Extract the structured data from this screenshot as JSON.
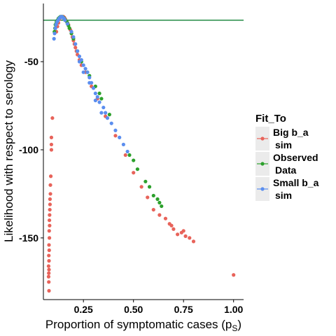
{
  "chart_data": {
    "type": "scatter",
    "title": "",
    "xlabel": "Proportion of symptomatic cases (p",
    "xlabel_sub": "S",
    "xlabel_close": ")",
    "ylabel": "Likelihood with respect to serology",
    "xlim": [
      0.05,
      1.05
    ],
    "ylim": [
      -185,
      -17
    ],
    "xticks": [
      0.25,
      0.5,
      0.75,
      1.0
    ],
    "xtick_labels": [
      "0.25",
      "0.50",
      "0.75",
      "1.00"
    ],
    "yticks": [
      -50,
      -100,
      -150
    ],
    "ytick_labels": [
      "-50",
      "-100",
      "-150"
    ],
    "grid": false,
    "legend_position": "right",
    "hline": {
      "y": -26.5,
      "color": "#238b45"
    },
    "legend": {
      "title": "Fit_To",
      "entries": [
        {
          "line1": "Big b_a",
          "line2": "sim",
          "color": "#E8635A"
        },
        {
          "line1": "Observed",
          "line2": "Data",
          "color": "#2CA02C"
        },
        {
          "line1": "Small b_a",
          "line2": "sim",
          "color": "#5B8EEF"
        }
      ]
    },
    "series": [
      {
        "name": "Big b_a sim",
        "color": "#E8635A",
        "points": [
          [
            0.095,
            -82
          ],
          [
            0.09,
            -93
          ],
          [
            0.09,
            -97
          ],
          [
            0.09,
            -100
          ],
          [
            0.087,
            -115
          ],
          [
            0.085,
            -120
          ],
          [
            0.085,
            -125
          ],
          [
            0.083,
            -128
          ],
          [
            0.083,
            -131
          ],
          [
            0.082,
            -134
          ],
          [
            0.081,
            -137
          ],
          [
            0.08,
            -140
          ],
          [
            0.081,
            -143
          ],
          [
            0.079,
            -146
          ],
          [
            0.08,
            -150
          ],
          [
            0.078,
            -154
          ],
          [
            0.079,
            -157
          ],
          [
            0.077,
            -160
          ],
          [
            0.078,
            -163
          ],
          [
            0.076,
            -166
          ],
          [
            0.078,
            -168
          ],
          [
            0.077,
            -170
          ],
          [
            0.076,
            -172
          ],
          [
            0.077,
            -175
          ],
          [
            0.078,
            -180
          ],
          [
            0.115,
            -33
          ],
          [
            0.12,
            -30
          ],
          [
            0.125,
            -28
          ],
          [
            0.13,
            -26
          ],
          [
            0.135,
            -25
          ],
          [
            0.14,
            -24.5
          ],
          [
            0.145,
            -24.5
          ],
          [
            0.15,
            -24.5
          ],
          [
            0.155,
            -25
          ],
          [
            0.16,
            -26
          ],
          [
            0.165,
            -27
          ],
          [
            0.17,
            -28
          ],
          [
            0.175,
            -29
          ],
          [
            0.18,
            -31
          ],
          [
            0.185,
            -32
          ],
          [
            0.19,
            -34
          ],
          [
            0.195,
            -36
          ],
          [
            0.2,
            -38
          ],
          [
            0.205,
            -40
          ],
          [
            0.21,
            -42
          ],
          [
            0.215,
            -44
          ],
          [
            0.22,
            -46
          ],
          [
            0.23,
            -49
          ],
          [
            0.24,
            -52
          ],
          [
            0.26,
            -56
          ],
          [
            0.29,
            -64
          ],
          [
            0.32,
            -71
          ],
          [
            0.36,
            -81
          ],
          [
            0.41,
            -92
          ],
          [
            0.46,
            -103
          ],
          [
            0.5,
            -113
          ],
          [
            0.54,
            -121
          ],
          [
            0.57,
            -127
          ],
          [
            0.6,
            -134
          ],
          [
            0.63,
            -137
          ],
          [
            0.66,
            -139
          ],
          [
            0.68,
            -142
          ],
          [
            0.7,
            -145
          ],
          [
            0.72,
            -148
          ],
          [
            0.74,
            -147
          ],
          [
            0.76,
            -149
          ],
          [
            0.78,
            -150
          ],
          [
            0.8,
            -152
          ],
          [
            0.75,
            -146
          ],
          [
            0.69,
            -143
          ],
          [
            1.0,
            -171
          ]
        ]
      },
      {
        "name": "Observed Data",
        "color": "#2CA02C",
        "points": [
          [
            0.105,
            -33
          ],
          [
            0.108,
            -31
          ],
          [
            0.11,
            -29
          ],
          [
            0.115,
            -27.5
          ],
          [
            0.12,
            -26.5
          ],
          [
            0.125,
            -25.5
          ],
          [
            0.13,
            -25
          ],
          [
            0.135,
            -24.5
          ],
          [
            0.14,
            -24.5
          ],
          [
            0.145,
            -24.5
          ],
          [
            0.15,
            -25
          ],
          [
            0.155,
            -25.5
          ],
          [
            0.16,
            -26.5
          ],
          [
            0.165,
            -27
          ],
          [
            0.17,
            -28
          ],
          [
            0.175,
            -29.5
          ],
          [
            0.18,
            -31
          ],
          [
            0.19,
            -34
          ],
          [
            0.2,
            -37
          ],
          [
            0.22,
            -44
          ],
          [
            0.24,
            -50
          ],
          [
            0.27,
            -56
          ],
          [
            0.28,
            -58
          ],
          [
            0.31,
            -64
          ],
          [
            0.33,
            -68
          ],
          [
            0.34,
            -71
          ],
          [
            0.38,
            -80
          ],
          [
            0.48,
            -103
          ],
          [
            0.5,
            -106
          ],
          [
            0.52,
            -111
          ],
          [
            0.56,
            -118
          ],
          [
            0.58,
            -121
          ],
          [
            0.6,
            -126
          ],
          [
            0.62,
            -128
          ],
          [
            0.63,
            -130
          ],
          [
            0.64,
            -132
          ]
        ]
      },
      {
        "name": "Small b_a sim",
        "color": "#5B8EEF",
        "points": [
          [
            0.103,
            -37
          ],
          [
            0.106,
            -34
          ],
          [
            0.11,
            -31
          ],
          [
            0.113,
            -29
          ],
          [
            0.118,
            -27.5
          ],
          [
            0.123,
            -26.5
          ],
          [
            0.128,
            -25.5
          ],
          [
            0.133,
            -25
          ],
          [
            0.138,
            -24.5
          ],
          [
            0.143,
            -24.5
          ],
          [
            0.148,
            -25
          ],
          [
            0.153,
            -25.5
          ],
          [
            0.158,
            -26.5
          ],
          [
            0.17,
            -28.5
          ],
          [
            0.19,
            -33
          ],
          [
            0.2,
            -36
          ],
          [
            0.21,
            -40
          ],
          [
            0.22,
            -44
          ],
          [
            0.23,
            -47
          ],
          [
            0.24,
            -49
          ],
          [
            0.25,
            -52
          ],
          [
            0.26,
            -54
          ],
          [
            0.27,
            -56
          ],
          [
            0.28,
            -59
          ],
          [
            0.29,
            -62
          ],
          [
            0.3,
            -65
          ],
          [
            0.31,
            -68
          ],
          [
            0.32,
            -70
          ],
          [
            0.33,
            -73
          ],
          [
            0.35,
            -76
          ],
          [
            0.36,
            -79
          ],
          [
            0.37,
            -82
          ],
          [
            0.39,
            -85
          ],
          [
            0.41,
            -89
          ],
          [
            0.43,
            -93
          ],
          [
            0.45,
            -97
          ],
          [
            0.47,
            -101
          ],
          [
            0.31,
            -72
          ],
          [
            0.28,
            -62
          ],
          [
            0.25,
            -56
          ],
          [
            0.23,
            -50
          ],
          [
            0.34,
            -79
          ]
        ]
      }
    ]
  }
}
